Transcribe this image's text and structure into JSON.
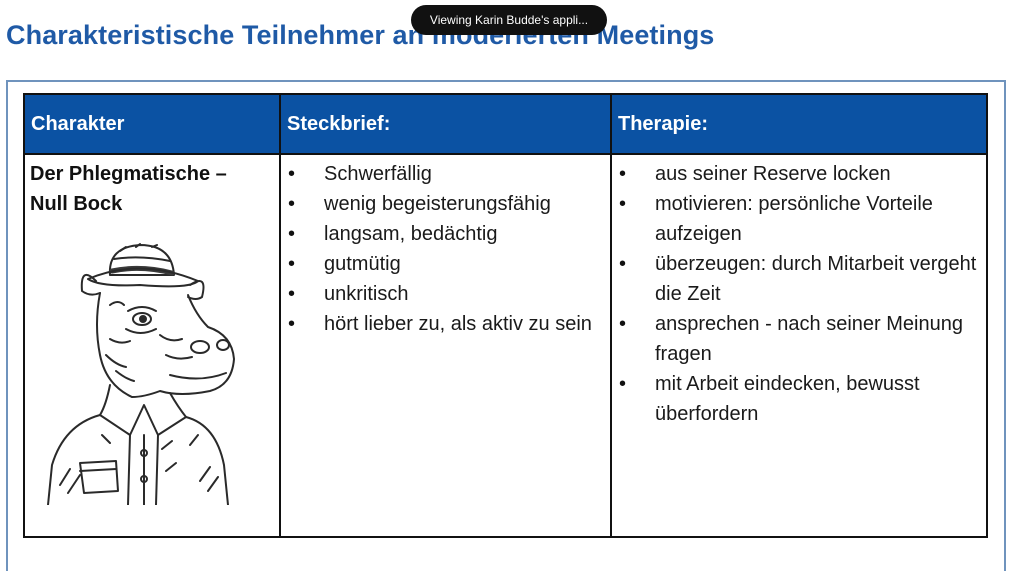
{
  "slide": {
    "title": "Charakteristische Teilnehmer an moderierten Meetings"
  },
  "share_banner": {
    "text": "Viewing Karin Budde's appli..."
  },
  "table": {
    "headers": {
      "character": "Charakter",
      "profile": "Steckbrief:",
      "therapy": "Therapie:"
    },
    "character": {
      "name_line1": "Der Phlegmatische –",
      "name_line2": "Null Bock",
      "illustration_icon": "hippo-with-hat-sketch"
    },
    "profile_items": [
      "Schwerfällig",
      "wenig begeisterungsfähig",
      "langsam, bedächtig",
      "gutmütig",
      "unkritisch",
      "hört lieber zu, als aktiv zu sein"
    ],
    "therapy_items": [
      "aus seiner Reserve locken",
      "motivieren: persönliche Vorteile aufzeigen",
      "überzeugen: durch Mitarbeit vergeht die Zeit",
      "ansprechen - nach seiner Meinung fragen",
      "mit Arbeit eindecken, bewusst überfordern"
    ]
  },
  "colors": {
    "title": "#1f5aa6",
    "header_bg": "#0b52a3",
    "frame": "#6f93bd"
  }
}
